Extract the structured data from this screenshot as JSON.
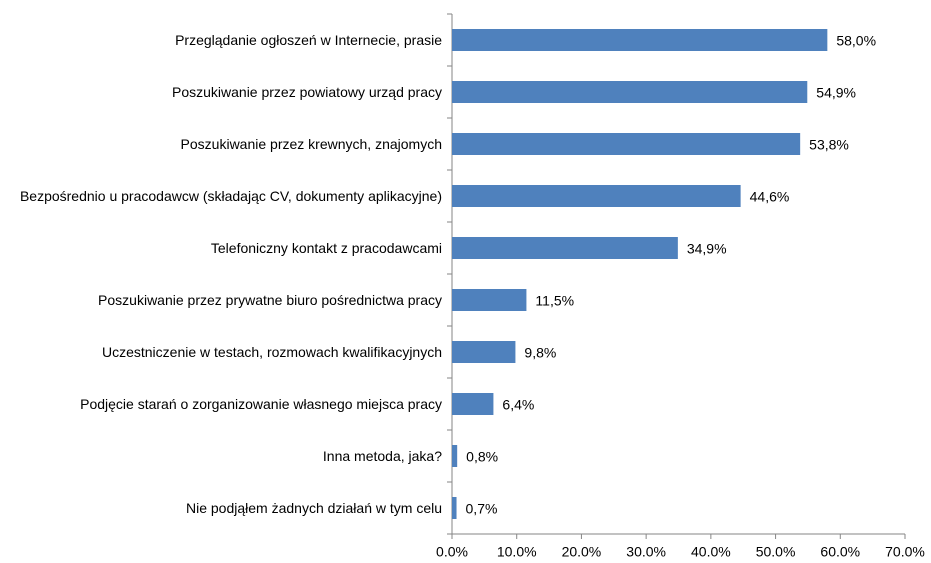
{
  "chart_data": {
    "type": "bar",
    "orientation": "horizontal",
    "categories": [
      "Przeglądanie ogłoszeń w Internecie,  prasie",
      "Poszukiwanie przez powiatowy urząd pracy",
      "Poszukiwanie przez krewnych, znajomych",
      "Bezpośrednio u pracodawcw (składając CV, dokumenty aplikacyjne)",
      "Telefoniczny kontakt z pracodawcami",
      "Poszukiwanie przez prywatne biuro pośrednictwa pracy",
      "Uczestniczenie w testach, rozmowach kwalifikacyjnych",
      "Podjęcie starań o zorganizowanie własnego miejsca pracy",
      "Inna metoda, jaka?",
      "Nie podjąłem żadnych działań w tym celu"
    ],
    "values": [
      58.0,
      54.9,
      53.8,
      44.6,
      34.9,
      11.5,
      9.8,
      6.4,
      0.8,
      0.7
    ],
    "value_labels": [
      "58,0%",
      "54,9%",
      "53,8%",
      "44,6%",
      "34,9%",
      "11,5%",
      "9,8%",
      "6,4%",
      "0,8%",
      "0,7%"
    ],
    "color": "#4f81bd",
    "xlim": [
      0,
      70
    ],
    "xticks": [
      {
        "value": 0,
        "label": "0.0%"
      },
      {
        "value": 10,
        "label": "10.0%"
      },
      {
        "value": 20,
        "label": "20.0%"
      },
      {
        "value": 30,
        "label": "30.0%"
      },
      {
        "value": 40,
        "label": "40.0%"
      },
      {
        "value": 50,
        "label": "50.0%"
      },
      {
        "value": 60,
        "label": "60.0%"
      },
      {
        "value": 70,
        "label": "70.0%"
      }
    ],
    "grid": false
  }
}
